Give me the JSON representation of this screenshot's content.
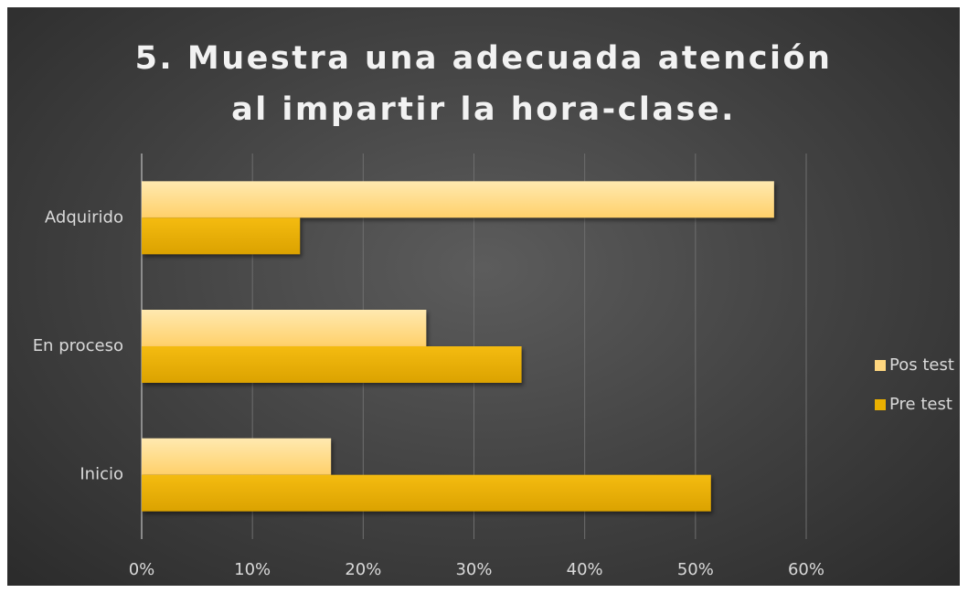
{
  "chart_data": {
    "type": "bar",
    "orientation": "horizontal",
    "title": "5. Muestra una adecuada atención al impartir la hora-clase.",
    "categories": [
      "Adquirido",
      "En proceso",
      "Inicio"
    ],
    "series": [
      {
        "name": "Pos test",
        "color": "#ffd77f",
        "values": [
          57.1,
          25.7,
          17.1
        ]
      },
      {
        "name": "Pre test",
        "color": "#eab000",
        "values": [
          14.3,
          34.3,
          51.4
        ]
      }
    ],
    "xlim": [
      0,
      60
    ],
    "xticks": [
      {
        "value": 0,
        "label": "0%"
      },
      {
        "value": 10,
        "label": "10%"
      },
      {
        "value": 20,
        "label": "20%"
      },
      {
        "value": 30,
        "label": "30%"
      },
      {
        "value": 40,
        "label": "40%"
      },
      {
        "value": 50,
        "label": "50%"
      },
      {
        "value": 60,
        "label": "60%"
      }
    ],
    "grid": true,
    "legend": "right"
  }
}
